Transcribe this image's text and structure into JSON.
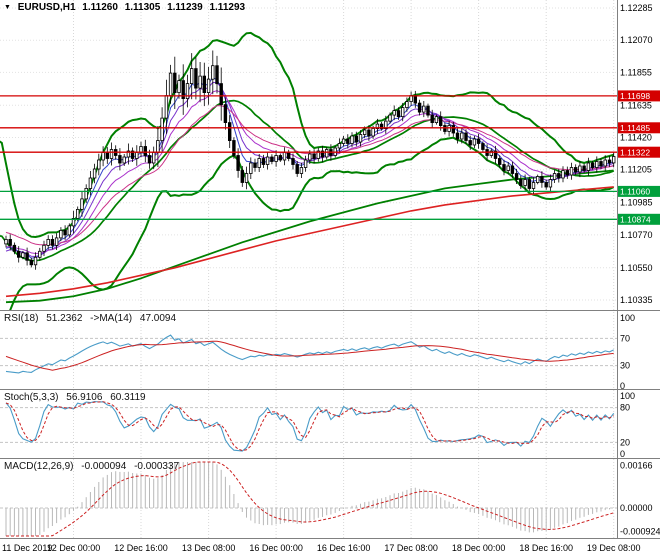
{
  "window": {
    "title": "EURUSD,H1 chart",
    "background": "#ffffff"
  },
  "header": {
    "dropdown_icon": "▼",
    "symbol": "EURUSD,H1",
    "open": "1.11260",
    "high": "1.11305",
    "low": "1.11239",
    "close": "1.11293"
  },
  "main_chart": {
    "price_ticks": [
      "1.12285",
      "1.12070",
      "1.11855",
      "1.11635",
      "1.11420",
      "1.11205",
      "1.10985",
      "1.10770",
      "1.10550",
      "1.10335"
    ],
    "axis_top_price": 1.12285,
    "axis_bottom_price": 1.10335,
    "levels": [
      {
        "label": "1.11698",
        "price": 1.11698,
        "color": "#d40000",
        "role": "resistance"
      },
      {
        "label": "1.11485",
        "price": 1.11485,
        "color": "#d40000",
        "role": "resistance"
      },
      {
        "label": "1.11322",
        "price": 1.11322,
        "color": "#d40000",
        "role": "resistance"
      },
      {
        "label": "1.11060",
        "price": 1.1106,
        "color": "#00a03c",
        "role": "support"
      },
      {
        "label": "1.10874",
        "price": 1.10874,
        "color": "#00a03c",
        "role": "support"
      }
    ]
  },
  "indicators": {
    "rsi": {
      "name": "RSI(18)",
      "value": "51.2362",
      "ma_name": "->MA(14)",
      "ma_value": "47.0094",
      "ticks": [
        "100",
        "70",
        "30",
        "0"
      ],
      "levels": [
        70,
        30
      ],
      "line_color": "#4a9cc8",
      "ma_color": "#cc2222"
    },
    "stoch": {
      "name": "Stoch(5,3,3)",
      "value": "56.9106",
      "signal_value": "60.3119",
      "ticks": [
        "100",
        "80",
        "20",
        "0"
      ],
      "levels": [
        80,
        20
      ],
      "k_color": "#4a9cc8",
      "d_color": "#cc2222"
    },
    "macd": {
      "name": "MACD(12,26,9)",
      "value": "-0.000094",
      "signal_value": "-0.000337",
      "ticks": [
        "0.00166",
        "0.00000",
        "-0.000924"
      ],
      "histogram_color": "#b8b8b8",
      "signal_color": "#cc2222"
    }
  },
  "chart_data": {
    "type": "candlestick",
    "symbol": "EURUSD",
    "timeframe": "H1",
    "x_labels": [
      {
        "text": "11 Dec 2019",
        "bar": 0
      },
      {
        "text": "12 Dec 00:00",
        "bar": 16
      },
      {
        "text": "12 Dec 16:00",
        "bar": 32
      },
      {
        "text": "13 Dec 08:00",
        "bar": 48
      },
      {
        "text": "16 Dec 00:00",
        "bar": 64
      },
      {
        "text": "16 Dec 16:00",
        "bar": 80
      },
      {
        "text": "17 Dec 08:00",
        "bar": 96
      },
      {
        "text": "18 Dec 00:00",
        "bar": 112
      },
      {
        "text": "18 Dec 16:00",
        "bar": 128
      },
      {
        "text": "19 Dec 08:00",
        "bar": 144
      }
    ],
    "closes": [
      1.1074,
      1.107,
      1.1066,
      1.1062,
      1.1065,
      1.106,
      1.1057,
      1.1062,
      1.1066,
      1.107,
      1.1074,
      1.107,
      1.1075,
      1.108,
      1.1077,
      1.1083,
      1.1088,
      1.1094,
      1.1101,
      1.1108,
      1.1115,
      1.1121,
      1.1127,
      1.1132,
      1.1128,
      1.1134,
      1.113,
      1.1125,
      1.1129,
      1.1133,
      1.1128,
      1.1132,
      1.1136,
      1.113,
      1.1125,
      1.1132,
      1.114,
      1.1155,
      1.117,
      1.1185,
      1.1172,
      1.118,
      1.1168,
      1.1178,
      1.1188,
      1.1175,
      1.1183,
      1.1172,
      1.1181,
      1.119,
      1.1178,
      1.1164,
      1.1152,
      1.114,
      1.113,
      1.112,
      1.1112,
      1.1118,
      1.1125,
      1.1122,
      1.1128,
      1.1124,
      1.1129,
      1.1126,
      1.113,
      1.1127,
      1.1132,
      1.1128,
      1.1124,
      1.1118,
      1.1122,
      1.1127,
      1.1131,
      1.1128,
      1.1133,
      1.1129,
      1.1134,
      1.113,
      1.1135,
      1.1138,
      1.1141,
      1.1138,
      1.1143,
      1.1139,
      1.1144,
      1.1147,
      1.1143,
      1.1148,
      1.1151,
      1.1148,
      1.1153,
      1.1157,
      1.116,
      1.1156,
      1.1162,
      1.1166,
      1.117,
      1.1165,
      1.1159,
      1.1163,
      1.1157,
      1.1152,
      1.1156,
      1.115,
      1.1146,
      1.115,
      1.1145,
      1.1141,
      1.1145,
      1.114,
      1.1137,
      1.1141,
      1.1138,
      1.1134,
      1.113,
      1.1133,
      1.1128,
      1.1124,
      1.112,
      1.1123,
      1.1118,
      1.1114,
      1.111,
      1.1114,
      1.1108,
      1.1112,
      1.1116,
      1.1112,
      1.1109,
      1.1114,
      1.1118,
      1.1115,
      1.112,
      1.1117,
      1.1122,
      1.1119,
      1.1123,
      1.112,
      1.1125,
      1.1122,
      1.1126,
      1.1123,
      1.1127,
      1.1125,
      1.11293
    ],
    "warmup_closes_estimate": [
      1.115,
      1.114,
      1.1128,
      1.1112,
      1.1095,
      1.1082,
      1.1072,
      1.1064,
      1.1058,
      1.1053,
      1.105,
      1.1048,
      1.1046,
      1.1049,
      1.1053,
      1.1057,
      1.1061,
      1.1065,
      1.1068,
      1.1071
    ],
    "bollinger": {
      "period": 20,
      "deviation": 2,
      "color": "#008000"
    },
    "ma_ribbon_periods": [
      5,
      8,
      13,
      21
    ],
    "slow_ma_red": [
      [
        0,
        1.1036
      ],
      [
        8,
        1.1038
      ],
      [
        16,
        1.1041
      ],
      [
        24,
        1.1045
      ],
      [
        32,
        1.105
      ],
      [
        40,
        1.1055
      ],
      [
        48,
        1.1061
      ],
      [
        56,
        1.1067
      ],
      [
        64,
        1.1073
      ],
      [
        72,
        1.1078
      ],
      [
        80,
        1.1083
      ],
      [
        88,
        1.1088
      ],
      [
        96,
        1.1093
      ],
      [
        104,
        1.1097
      ],
      [
        112,
        1.11
      ],
      [
        120,
        1.1103
      ],
      [
        128,
        1.1105
      ],
      [
        136,
        1.1107
      ],
      [
        144,
        1.1109
      ]
    ],
    "slow_ma_green": [
      [
        0,
        1.1032
      ],
      [
        8,
        1.1033
      ],
      [
        16,
        1.1036
      ],
      [
        24,
        1.1041
      ],
      [
        32,
        1.1048
      ],
      [
        40,
        1.1056
      ],
      [
        48,
        1.1064
      ],
      [
        56,
        1.1072
      ],
      [
        64,
        1.1079
      ],
      [
        72,
        1.1086
      ],
      [
        80,
        1.1092
      ],
      [
        88,
        1.1098
      ],
      [
        96,
        1.1103
      ],
      [
        104,
        1.1108
      ],
      [
        112,
        1.1111
      ],
      [
        120,
        1.1114
      ],
      [
        128,
        1.1116
      ],
      [
        136,
        1.1118
      ],
      [
        144,
        1.112
      ]
    ]
  }
}
